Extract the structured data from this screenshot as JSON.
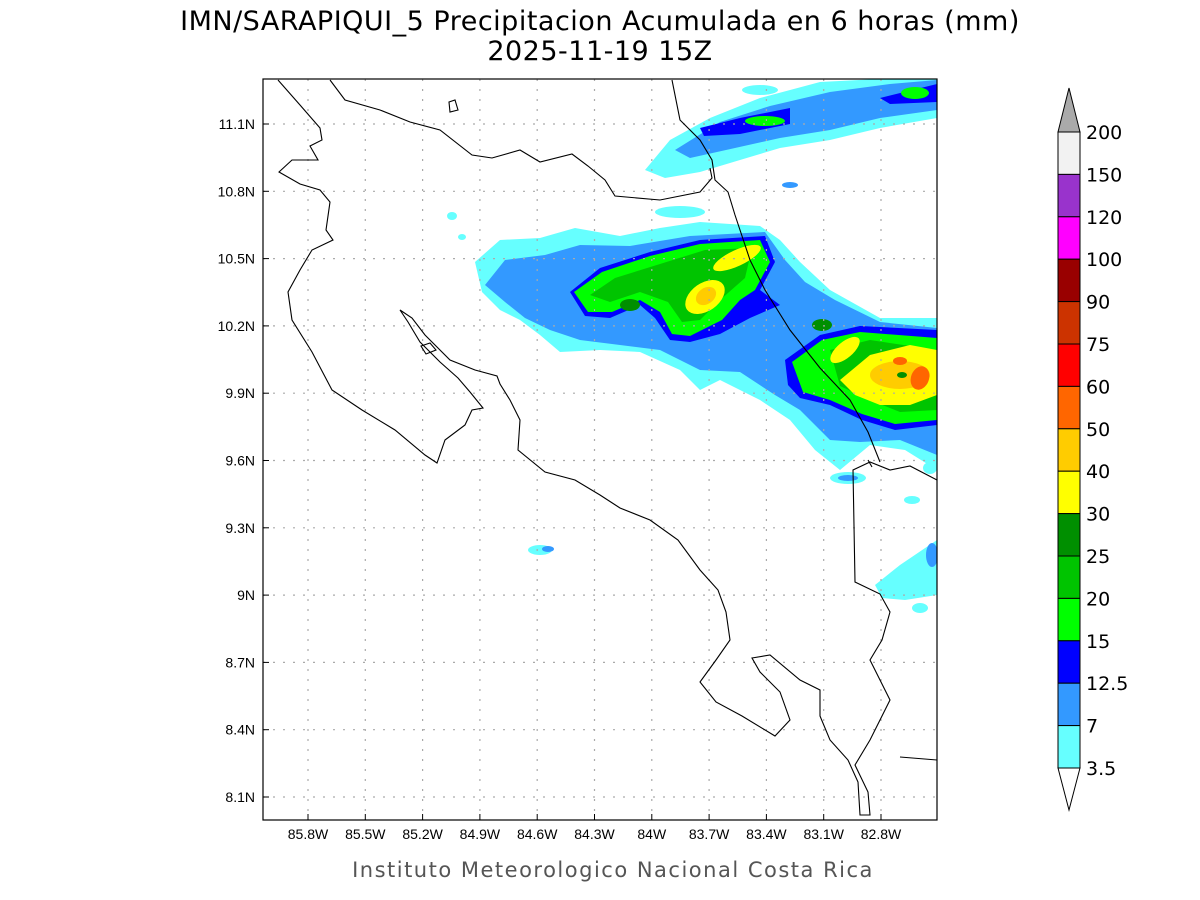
{
  "title": {
    "line1": "IMN/SARAPIQUI_5 Precipitacion Acumulada en 6 horas (mm)",
    "line2": "2025-11-19 15Z"
  },
  "footer": "Instituto Meteorologico Nacional Costa Rica",
  "map": {
    "lon_ticks": [
      "85.8W",
      "85.5W",
      "85.2W",
      "84.9W",
      "84.6W",
      "84.3W",
      "84W",
      "83.7W",
      "83.4W",
      "83.1W",
      "82.8W"
    ],
    "lat_ticks": [
      "11.1N",
      "10.8N",
      "10.5N",
      "10.2N",
      "9.9N",
      "9.6N",
      "9.3N",
      "9N",
      "8.7N",
      "8.4N",
      "8.1N"
    ],
    "grid": true
  },
  "colorbar": {
    "labels": [
      "200",
      "150",
      "120",
      "100",
      "90",
      "75",
      "60",
      "50",
      "40",
      "30",
      "25",
      "20",
      "15",
      "12.5",
      "7",
      "3.5"
    ],
    "colors": [
      "#f2f2f2",
      "#9933cc",
      "#ff00ff",
      "#990000",
      "#cc3300",
      "#ff0000",
      "#ff6600",
      "#ffcc00",
      "#ffff00",
      "#008f00",
      "#00c400",
      "#00ff00",
      "#0000ff",
      "#3399ff",
      "#66ffff"
    ],
    "over_color": "#aaaaaa",
    "under_color": "#ffffff"
  }
}
